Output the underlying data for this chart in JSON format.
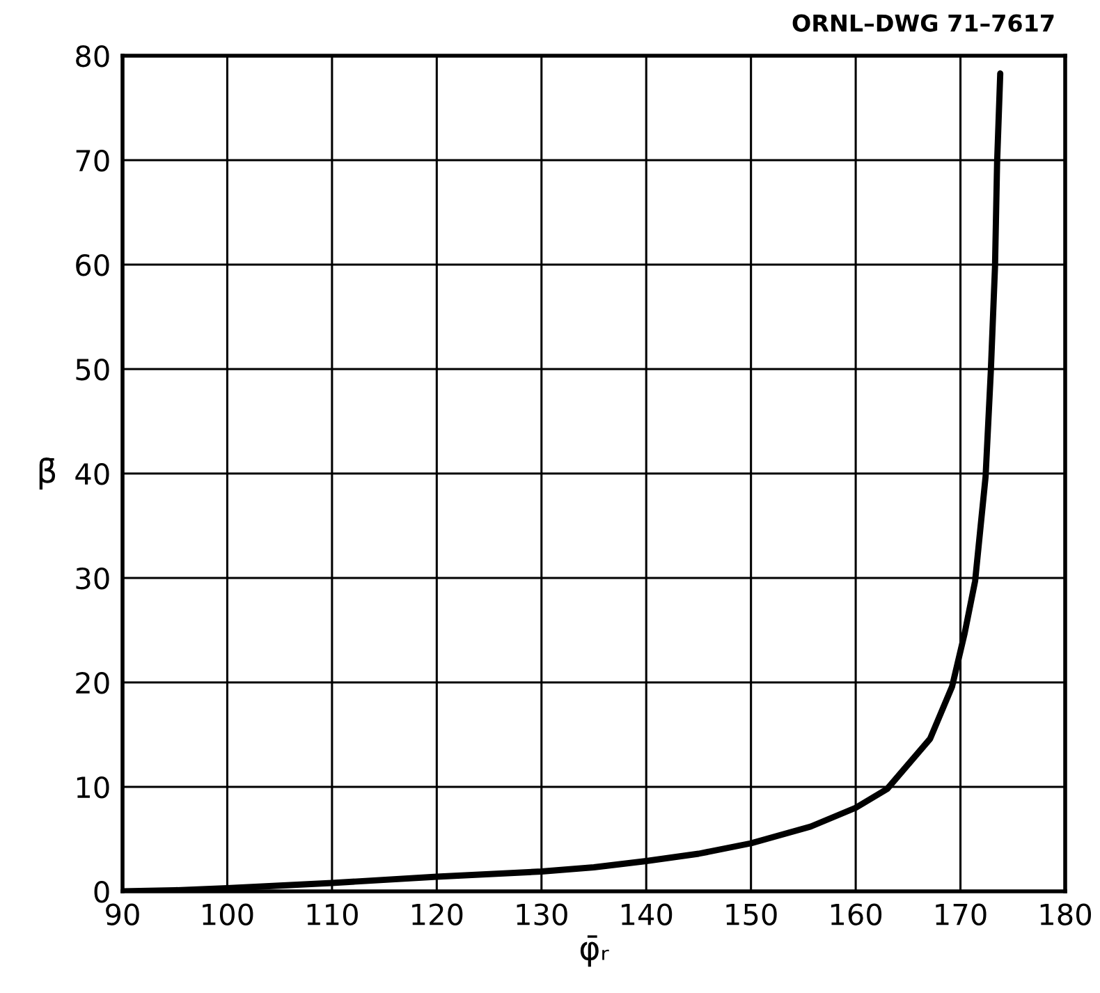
{
  "chart_data": {
    "type": "line",
    "xlabel": "φ̄ᵣ",
    "ylabel": "β̄",
    "annotations": [
      "ORNL–DWG 71–7617"
    ],
    "series": [
      {
        "color": "#000000",
        "x": [
          90,
          95,
          100,
          110,
          120,
          130,
          135,
          140,
          145,
          150,
          155.7,
          160,
          163,
          167.1,
          169.2,
          170.4,
          171.4,
          172.4,
          172.9,
          173.3,
          173.5,
          173.8
        ],
        "values": [
          0,
          0.1,
          0.3,
          0.8,
          1.4,
          1.9,
          2.3,
          2.9,
          3.6,
          4.6,
          6.2,
          8.0,
          9.8,
          14.6,
          19.6,
          24.7,
          29.7,
          39.7,
          49.8,
          59.8,
          69.8,
          78.3
        ]
      }
    ],
    "xlim": [
      90,
      180
    ],
    "xticks": [
      90,
      100,
      110,
      120,
      130,
      140,
      150,
      160,
      170,
      180
    ],
    "ylim": [
      0,
      80
    ],
    "yticks": [
      0,
      10,
      20,
      30,
      40,
      50,
      60,
      70,
      80
    ],
    "grid": true,
    "marker": "none",
    "line_style": "solid"
  }
}
